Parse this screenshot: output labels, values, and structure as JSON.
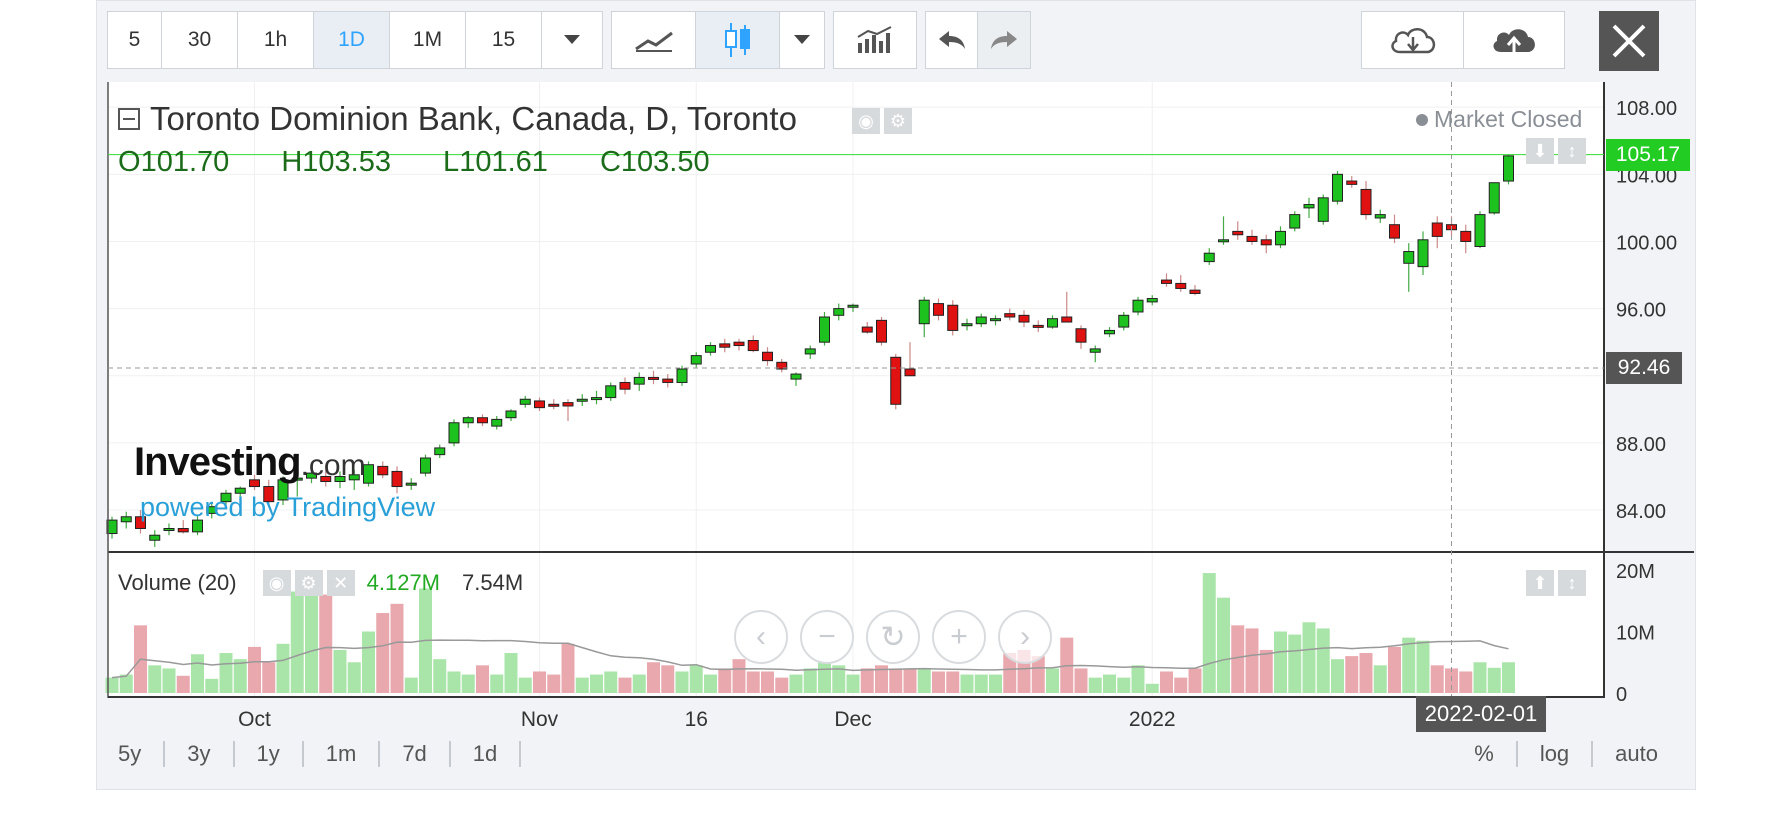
{
  "toolbar": {
    "intervals": [
      "5",
      "30",
      "1h",
      "1D",
      "1M",
      "15"
    ],
    "active_interval": "1D"
  },
  "legend": {
    "title": "Toronto Dominion Bank, Canada, D, Toronto",
    "open_label": "O",
    "open": "101.70",
    "high_label": "H",
    "high": "103.53",
    "low_label": "L",
    "low": "101.61",
    "close_label": "C",
    "close": "103.50",
    "market_status": "Market Closed"
  },
  "volume_legend": {
    "title": "Volume (20)",
    "value1": "4.127M",
    "value2": "7.54M"
  },
  "watermark": {
    "brand": "Investing",
    "brand_suffix": ".com",
    "powered": "powered by TradingView"
  },
  "crosshair": {
    "price_label": "92.46",
    "last_price_label": "105.17",
    "date_label": "2022-02-01"
  },
  "bottom_bar": {
    "ranges": [
      "5y",
      "3y",
      "1y",
      "1m",
      "7d",
      "1d"
    ],
    "scale_options": [
      "%",
      "log",
      "auto"
    ]
  },
  "colors": {
    "up": "#1ec21e",
    "down": "#e01111",
    "vol_up": "#a9e5a9",
    "vol_down": "#e9a8ad",
    "last_price": "#22cc22",
    "crosshair_tag": "#555555"
  },
  "chart_data": {
    "type": "candlestick",
    "price_axis": {
      "min": 81.5,
      "max": 109.5,
      "ticks": [
        "84.00",
        "88.00",
        "92.00",
        "96.00",
        "100.00",
        "104.00",
        "108.00"
      ]
    },
    "volume_axis": {
      "min": 0,
      "max": 20,
      "ticks": [
        "0",
        "10M",
        "20M"
      ]
    },
    "x_ticks": [
      "Oct",
      "Nov",
      "16",
      "Dec",
      "2022"
    ],
    "ma_period": 20,
    "candles": [
      {
        "date": "2021-09-17",
        "o": 82.6,
        "h": 83.6,
        "l": 82.3,
        "c": 83.4,
        "v": 2.5
      },
      {
        "date": "2021-09-20",
        "o": 83.3,
        "h": 83.9,
        "l": 82.9,
        "c": 83.6,
        "v": 3.0
      },
      {
        "date": "2021-09-21",
        "o": 83.6,
        "h": 84.0,
        "l": 82.6,
        "c": 82.9,
        "v": 11.0
      },
      {
        "date": "2021-09-22",
        "o": 82.2,
        "h": 82.8,
        "l": 81.8,
        "c": 82.5,
        "v": 4.5
      },
      {
        "date": "2021-09-23",
        "o": 82.8,
        "h": 83.2,
        "l": 82.5,
        "c": 82.9,
        "v": 4.0
      },
      {
        "date": "2021-09-24",
        "o": 82.9,
        "h": 83.4,
        "l": 82.6,
        "c": 82.7,
        "v": 2.8
      },
      {
        "date": "2021-09-27",
        "o": 82.7,
        "h": 83.7,
        "l": 82.5,
        "c": 83.4,
        "v": 6.3
      },
      {
        "date": "2021-09-28",
        "o": 83.8,
        "h": 84.4,
        "l": 83.5,
        "c": 84.2,
        "v": 2.3
      },
      {
        "date": "2021-09-29",
        "o": 84.5,
        "h": 85.2,
        "l": 84.3,
        "c": 85.0,
        "v": 6.5
      },
      {
        "date": "2021-09-30",
        "o": 85.0,
        "h": 85.4,
        "l": 84.6,
        "c": 85.3,
        "v": 5.5
      },
      {
        "date": "2021-10-01",
        "o": 85.8,
        "h": 86.1,
        "l": 85.2,
        "c": 85.4,
        "v": 7.5
      },
      {
        "date": "2021-10-04",
        "o": 85.4,
        "h": 85.8,
        "l": 84.2,
        "c": 84.5,
        "v": 5.0
      },
      {
        "date": "2021-10-05",
        "o": 84.6,
        "h": 86.0,
        "l": 84.3,
        "c": 85.8,
        "v": 8.0
      },
      {
        "date": "2021-10-06",
        "o": 85.8,
        "h": 86.4,
        "l": 84.8,
        "c": 85.9,
        "v": 16.5
      },
      {
        "date": "2021-10-07",
        "o": 85.9,
        "h": 86.4,
        "l": 85.6,
        "c": 86.2,
        "v": 17.0
      },
      {
        "date": "2021-10-08",
        "o": 86.0,
        "h": 86.4,
        "l": 85.4,
        "c": 85.7,
        "v": 16.0
      },
      {
        "date": "2021-10-12",
        "o": 85.7,
        "h": 86.3,
        "l": 85.3,
        "c": 86.0,
        "v": 7.0
      },
      {
        "date": "2021-10-13",
        "o": 85.8,
        "h": 86.4,
        "l": 85.2,
        "c": 86.1,
        "v": 5.0
      },
      {
        "date": "2021-10-14",
        "o": 85.6,
        "h": 86.9,
        "l": 85.4,
        "c": 86.7,
        "v": 10.0
      },
      {
        "date": "2021-10-15",
        "o": 86.6,
        "h": 86.9,
        "l": 85.9,
        "c": 86.1,
        "v": 13.0
      },
      {
        "date": "2021-10-18",
        "o": 86.3,
        "h": 86.6,
        "l": 85.0,
        "c": 85.4,
        "v": 14.5
      },
      {
        "date": "2021-10-19",
        "o": 85.5,
        "h": 85.9,
        "l": 85.2,
        "c": 85.6,
        "v": 2.5
      },
      {
        "date": "2021-10-20",
        "o": 86.2,
        "h": 87.3,
        "l": 86.0,
        "c": 87.1,
        "v": 17.0
      },
      {
        "date": "2021-10-21",
        "o": 87.3,
        "h": 87.9,
        "l": 87.1,
        "c": 87.7,
        "v": 5.5
      },
      {
        "date": "2021-10-22",
        "o": 88.0,
        "h": 89.4,
        "l": 87.8,
        "c": 89.2,
        "v": 3.5
      },
      {
        "date": "2021-10-25",
        "o": 89.2,
        "h": 89.6,
        "l": 88.9,
        "c": 89.5,
        "v": 3.0
      },
      {
        "date": "2021-10-26",
        "o": 89.5,
        "h": 89.7,
        "l": 89.0,
        "c": 89.2,
        "v": 4.5
      },
      {
        "date": "2021-10-27",
        "o": 89.0,
        "h": 89.6,
        "l": 88.8,
        "c": 89.4,
        "v": 3.0
      },
      {
        "date": "2021-10-28",
        "o": 89.5,
        "h": 90.0,
        "l": 89.3,
        "c": 89.9,
        "v": 6.5
      },
      {
        "date": "2021-10-29",
        "o": 90.3,
        "h": 90.8,
        "l": 90.1,
        "c": 90.6,
        "v": 2.5
      },
      {
        "date": "2021-11-01",
        "o": 90.5,
        "h": 90.7,
        "l": 89.9,
        "c": 90.1,
        "v": 3.5
      },
      {
        "date": "2021-11-02",
        "o": 90.3,
        "h": 90.6,
        "l": 90.0,
        "c": 90.2,
        "v": 3.0
      },
      {
        "date": "2021-11-03",
        "o": 90.4,
        "h": 90.6,
        "l": 89.3,
        "c": 90.2,
        "v": 8.0
      },
      {
        "date": "2021-11-04",
        "o": 90.5,
        "h": 90.9,
        "l": 90.2,
        "c": 90.6,
        "v": 2.5
      },
      {
        "date": "2021-11-05",
        "o": 90.6,
        "h": 91.1,
        "l": 90.3,
        "c": 90.7,
        "v": 3.0
      },
      {
        "date": "2021-11-08",
        "o": 90.7,
        "h": 91.6,
        "l": 90.5,
        "c": 91.4,
        "v": 3.5
      },
      {
        "date": "2021-11-09",
        "o": 91.6,
        "h": 91.9,
        "l": 90.9,
        "c": 91.2,
        "v": 2.5
      },
      {
        "date": "2021-11-10",
        "o": 91.5,
        "h": 92.2,
        "l": 91.1,
        "c": 91.9,
        "v": 3.0
      },
      {
        "date": "2021-11-11",
        "o": 91.9,
        "h": 92.3,
        "l": 91.5,
        "c": 91.8,
        "v": 5.0
      },
      {
        "date": "2021-11-12",
        "o": 91.8,
        "h": 92.1,
        "l": 91.3,
        "c": 91.6,
        "v": 4.5
      },
      {
        "date": "2021-11-15",
        "o": 91.6,
        "h": 92.6,
        "l": 91.4,
        "c": 92.4,
        "v": 3.5
      },
      {
        "date": "2021-11-16",
        "o": 92.7,
        "h": 93.4,
        "l": 92.5,
        "c": 93.2,
        "v": 4.5
      },
      {
        "date": "2021-11-17",
        "o": 93.4,
        "h": 94.0,
        "l": 93.2,
        "c": 93.8,
        "v": 3.0
      },
      {
        "date": "2021-11-18",
        "o": 93.9,
        "h": 94.2,
        "l": 93.4,
        "c": 93.7,
        "v": 4.0
      },
      {
        "date": "2021-11-19",
        "o": 94.0,
        "h": 94.2,
        "l": 93.5,
        "c": 93.8,
        "v": 5.5
      },
      {
        "date": "2021-11-22",
        "o": 94.1,
        "h": 94.4,
        "l": 93.4,
        "c": 93.5,
        "v": 3.5
      },
      {
        "date": "2021-11-23",
        "o": 93.4,
        "h": 93.7,
        "l": 92.6,
        "c": 92.9,
        "v": 3.5
      },
      {
        "date": "2021-11-24",
        "o": 92.8,
        "h": 93.0,
        "l": 92.2,
        "c": 92.4,
        "v": 2.5
      },
      {
        "date": "2021-11-25",
        "o": 91.8,
        "h": 92.2,
        "l": 91.4,
        "c": 92.1,
        "v": 3.0
      },
      {
        "date": "2021-11-26",
        "o": 93.3,
        "h": 93.8,
        "l": 93.0,
        "c": 93.6,
        "v": 4.0
      },
      {
        "date": "2021-11-29",
        "o": 94.0,
        "h": 95.8,
        "l": 93.8,
        "c": 95.5,
        "v": 5.0
      },
      {
        "date": "2021-11-30",
        "o": 95.6,
        "h": 96.3,
        "l": 95.3,
        "c": 96.0,
        "v": 4.5
      },
      {
        "date": "2021-12-01",
        "o": 96.1,
        "h": 96.3,
        "l": 95.8,
        "c": 96.2,
        "v": 3.0
      },
      {
        "date": "2021-12-02",
        "o": 94.9,
        "h": 95.2,
        "l": 94.5,
        "c": 94.6,
        "v": 4.0
      },
      {
        "date": "2021-12-03",
        "o": 95.3,
        "h": 95.5,
        "l": 93.8,
        "c": 94.0,
        "v": 4.5
      },
      {
        "date": "2021-12-06",
        "o": 93.1,
        "h": 93.3,
        "l": 90.0,
        "c": 90.3,
        "v": 4.0
      },
      {
        "date": "2021-12-07",
        "o": 92.4,
        "h": 94.0,
        "l": 92.0,
        "c": 92.0,
        "v": 4.0
      },
      {
        "date": "2021-12-08",
        "o": 95.1,
        "h": 96.7,
        "l": 94.3,
        "c": 96.5,
        "v": 4.0
      },
      {
        "date": "2021-12-09",
        "o": 96.3,
        "h": 96.6,
        "l": 95.3,
        "c": 95.6,
        "v": 3.5
      },
      {
        "date": "2021-12-10",
        "o": 96.2,
        "h": 96.5,
        "l": 94.4,
        "c": 94.7,
        "v": 3.5
      },
      {
        "date": "2021-12-13",
        "o": 95.0,
        "h": 95.4,
        "l": 94.7,
        "c": 95.1,
        "v": 3.0
      },
      {
        "date": "2021-12-14",
        "o": 95.1,
        "h": 95.7,
        "l": 94.9,
        "c": 95.5,
        "v": 3.0
      },
      {
        "date": "2021-12-15",
        "o": 95.3,
        "h": 95.6,
        "l": 95.0,
        "c": 95.4,
        "v": 3.0
      },
      {
        "date": "2021-12-16",
        "o": 95.7,
        "h": 96.0,
        "l": 95.3,
        "c": 95.5,
        "v": 6.5
      },
      {
        "date": "2021-12-17",
        "o": 95.6,
        "h": 95.9,
        "l": 94.9,
        "c": 95.2,
        "v": 7.0
      },
      {
        "date": "2021-12-20",
        "o": 95.0,
        "h": 95.3,
        "l": 94.6,
        "c": 94.9,
        "v": 6.0
      },
      {
        "date": "2021-12-21",
        "o": 94.9,
        "h": 95.6,
        "l": 94.8,
        "c": 95.4,
        "v": 4.0
      },
      {
        "date": "2021-12-22",
        "o": 95.5,
        "h": 97.0,
        "l": 95.2,
        "c": 95.2,
        "v": 9.0
      },
      {
        "date": "2021-12-23",
        "o": 94.8,
        "h": 95.0,
        "l": 93.6,
        "c": 94.0,
        "v": 4.0
      },
      {
        "date": "2021-12-24",
        "o": 93.4,
        "h": 93.8,
        "l": 92.8,
        "c": 93.6,
        "v": 2.5
      },
      {
        "date": "2021-12-29",
        "o": 94.5,
        "h": 94.9,
        "l": 94.3,
        "c": 94.7,
        "v": 3.0
      },
      {
        "date": "2021-12-30",
        "o": 94.9,
        "h": 95.8,
        "l": 94.7,
        "c": 95.6,
        "v": 2.5
      },
      {
        "date": "2021-12-31",
        "o": 95.8,
        "h": 96.7,
        "l": 95.6,
        "c": 96.5,
        "v": 4.5
      },
      {
        "date": "2022-01-03",
        "o": 96.4,
        "h": 96.8,
        "l": 96.2,
        "c": 96.6,
        "v": 1.5
      },
      {
        "date": "2022-01-04",
        "o": 97.7,
        "h": 98.1,
        "l": 97.3,
        "c": 97.5,
        "v": 3.5
      },
      {
        "date": "2022-01-05",
        "o": 97.5,
        "h": 98.0,
        "l": 97.0,
        "c": 97.2,
        "v": 2.5
      },
      {
        "date": "2022-01-06",
        "o": 97.1,
        "h": 97.4,
        "l": 96.8,
        "c": 96.9,
        "v": 4.0
      },
      {
        "date": "2022-01-07",
        "o": 98.8,
        "h": 99.6,
        "l": 98.6,
        "c": 99.3,
        "v": 19.5
      },
      {
        "date": "2022-01-10",
        "o": 100.0,
        "h": 101.5,
        "l": 99.8,
        "c": 100.1,
        "v": 15.5
      },
      {
        "date": "2022-01-11",
        "o": 100.6,
        "h": 101.2,
        "l": 100.1,
        "c": 100.4,
        "v": 11.0
      },
      {
        "date": "2022-01-12",
        "o": 100.3,
        "h": 100.7,
        "l": 99.8,
        "c": 100.0,
        "v": 10.5
      },
      {
        "date": "2022-01-13",
        "o": 100.1,
        "h": 100.4,
        "l": 99.3,
        "c": 99.8,
        "v": 7.0
      },
      {
        "date": "2022-01-14",
        "o": 99.8,
        "h": 100.9,
        "l": 99.6,
        "c": 100.6,
        "v": 10.0
      },
      {
        "date": "2022-01-17",
        "o": 100.8,
        "h": 101.8,
        "l": 100.6,
        "c": 101.6,
        "v": 9.5
      },
      {
        "date": "2022-01-18",
        "o": 102.0,
        "h": 102.6,
        "l": 101.4,
        "c": 102.2,
        "v": 11.5
      },
      {
        "date": "2022-01-19",
        "o": 101.2,
        "h": 102.8,
        "l": 101.0,
        "c": 102.6,
        "v": 10.5
      },
      {
        "date": "2022-01-20",
        "o": 102.4,
        "h": 104.2,
        "l": 102.2,
        "c": 104.0,
        "v": 5.5
      },
      {
        "date": "2022-01-21",
        "o": 103.6,
        "h": 103.9,
        "l": 103.2,
        "c": 103.4,
        "v": 6.0
      },
      {
        "date": "2022-01-24",
        "o": 103.1,
        "h": 103.6,
        "l": 101.3,
        "c": 101.6,
        "v": 6.5
      },
      {
        "date": "2022-01-25",
        "o": 101.4,
        "h": 101.9,
        "l": 101.1,
        "c": 101.6,
        "v": 4.5
      },
      {
        "date": "2022-01-26",
        "o": 101.0,
        "h": 101.6,
        "l": 99.9,
        "c": 100.2,
        "v": 7.5
      },
      {
        "date": "2022-01-27",
        "o": 98.7,
        "h": 99.9,
        "l": 97.0,
        "c": 99.4,
        "v": 9.0
      },
      {
        "date": "2022-01-28",
        "o": 98.5,
        "h": 100.6,
        "l": 98.0,
        "c": 100.1,
        "v": 8.5
      },
      {
        "date": "2022-01-31",
        "o": 101.1,
        "h": 101.5,
        "l": 99.6,
        "c": 100.3,
        "v": 4.5
      },
      {
        "date": "2022-02-01",
        "o": 101.0,
        "h": 101.5,
        "l": 100.3,
        "c": 100.7,
        "v": 4.0
      },
      {
        "date": "2022-02-02",
        "o": 100.6,
        "h": 101.0,
        "l": 99.3,
        "c": 100.0,
        "v": 3.5
      },
      {
        "date": "2022-02-03",
        "o": 99.7,
        "h": 101.8,
        "l": 99.6,
        "c": 101.6,
        "v": 5.0
      },
      {
        "date": "2022-02-04",
        "o": 101.7,
        "h": 103.5,
        "l": 101.6,
        "c": 103.5,
        "v": 4.1
      },
      {
        "date": "2022-02-07",
        "o": 103.6,
        "h": 105.2,
        "l": 103.4,
        "c": 105.1,
        "v": 5.0
      }
    ]
  }
}
